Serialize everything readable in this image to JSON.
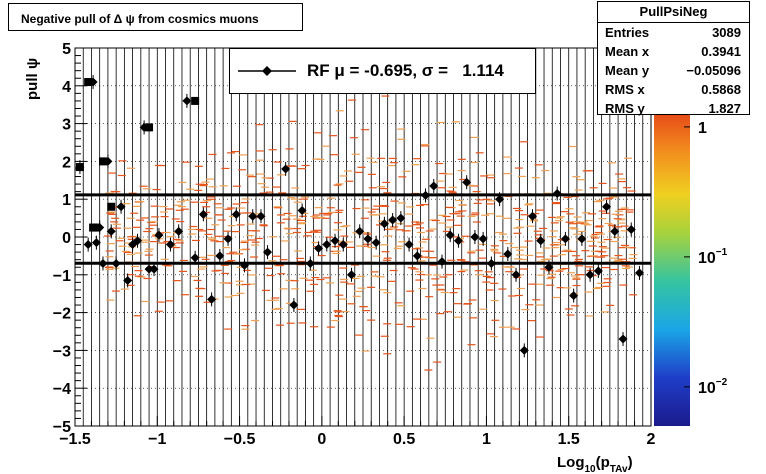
{
  "title": "Negative pull of Δ ψ from cosmics muons",
  "stats": {
    "name": "PullPsiNeg",
    "rows": [
      {
        "label": "Entries",
        "value": "3089"
      },
      {
        "label": "Mean x",
        "value": "0.3941"
      },
      {
        "label": "Mean y",
        "value": "−0.05096"
      },
      {
        "label": "RMS x",
        "value": "0.5868"
      },
      {
        "label": "RMS y",
        "value": "1.827"
      }
    ]
  },
  "legend": {
    "text": "RF μ = -0.695, σ =   1.114"
  },
  "colors": {
    "marker": "#000000",
    "scatter": "#e8541a",
    "scatter_light": "#f0a050"
  },
  "chart_data": {
    "type": "scatter",
    "title": "Negative pull of Δ ψ from cosmics muons",
    "xlabel": "Log",
    "xlabel_sub": "10",
    "xlabel_arg": "(p",
    "xlabel_arg_sub": "TAv",
    "xlabel_close": ")",
    "ylabel": "pull ψ",
    "xlim": [
      -1.5,
      2
    ],
    "ylim": [
      -5,
      5
    ],
    "x_ticks": [
      {
        "v": -1.5,
        "label": "−1.5"
      },
      {
        "v": -1,
        "label": "−1"
      },
      {
        "v": -0.5,
        "label": "−0.5"
      },
      {
        "v": 0,
        "label": "0"
      },
      {
        "v": 0.5,
        "label": "0.5"
      },
      {
        "v": 1,
        "label": "1"
      },
      {
        "v": 1.5,
        "label": "1.5"
      },
      {
        "v": 2,
        "label": "2"
      }
    ],
    "y_ticks": [
      {
        "v": 5,
        "label": "5"
      },
      {
        "v": 4,
        "label": "4"
      },
      {
        "v": 3,
        "label": "3"
      },
      {
        "v": 2,
        "label": "2"
      },
      {
        "v": 1,
        "label": "1"
      },
      {
        "v": 0,
        "label": "0"
      },
      {
        "v": -1,
        "label": "−1"
      },
      {
        "v": -2,
        "label": "−2"
      },
      {
        "v": -3,
        "label": "−3"
      },
      {
        "v": -4,
        "label": "−4"
      },
      {
        "v": -5,
        "label": "−5"
      }
    ],
    "grid": true,
    "reference_lines": [
      1.114,
      -0.695
    ],
    "colorbar": {
      "scale": "log",
      "range": [
        0.005,
        1.5
      ],
      "labels": [
        {
          "v": 1,
          "base": "1",
          "exp": ""
        },
        {
          "v": 0.1,
          "base": "10",
          "exp": "−1"
        },
        {
          "v": 0.01,
          "base": "10",
          "exp": "−2"
        }
      ]
    },
    "profile_markers": {
      "x": [
        -1.47,
        -1.42,
        -1.39,
        -1.37,
        -1.35,
        -1.33,
        -1.3,
        -1.28,
        -1.25,
        -1.22,
        -1.18,
        -1.15,
        -1.12,
        -1.08,
        -1.05,
        -1.02,
        -0.99,
        -0.92,
        -0.87,
        -0.82,
        -0.77,
        -0.72,
        -0.67,
        -0.62,
        -0.57,
        -0.52,
        -0.47,
        -0.42,
        -0.37,
        -0.33,
        -0.22,
        -0.17,
        -0.12,
        -0.07,
        -0.02,
        0.03,
        0.08,
        0.13,
        0.18,
        0.23,
        0.28,
        0.33,
        0.38,
        0.43,
        0.48,
        0.53,
        0.58,
        0.63,
        0.68,
        0.73,
        0.78,
        0.83,
        0.88,
        0.93,
        0.98,
        1.03,
        1.08,
        1.13,
        1.18,
        1.23,
        1.28,
        1.33,
        1.38,
        1.43,
        1.48,
        1.53,
        1.58,
        1.63,
        1.68,
        1.73,
        1.78,
        1.83,
        1.88,
        1.93
      ],
      "y": [
        1.85,
        -0.2,
        4.1,
        -0.15,
        0.25,
        -0.7,
        2.0,
        0.15,
        -0.7,
        0.8,
        -1.15,
        -0.2,
        -0.1,
        2.9,
        -0.85,
        -0.85,
        0.05,
        -0.2,
        0.15,
        3.6,
        -0.55,
        0.6,
        -1.65,
        -0.5,
        -0.05,
        0.6,
        -0.75,
        0.55,
        0.55,
        -0.4,
        1.8,
        -1.8,
        0.7,
        -0.7,
        -0.3,
        -0.2,
        -0.1,
        -0.2,
        -1.0,
        0.15,
        -0.05,
        -0.15,
        0.35,
        0.45,
        0.5,
        -0.2,
        -0.5,
        1.1,
        1.35,
        -0.65,
        0.05,
        -0.1,
        1.45,
        -0.0,
        -0.05,
        -0.7,
        1.0,
        -0.45,
        -1.0,
        -3.0,
        0.55,
        -0.1,
        -0.8,
        1.15,
        -0.05,
        -1.55,
        -0.05,
        -1.0,
        -0.9,
        0.8,
        0.15,
        -2.7,
        0.2,
        -0.95
      ],
      "square_markers_x": [
        -1.47,
        -1.42,
        -1.39,
        -1.37,
        -1.33,
        -1.28,
        -1.05,
        -0.77
      ],
      "square_markers_y": [
        1.85,
        4.1,
        0.25,
        0.25,
        2.0,
        0.8,
        2.9,
        3.6
      ]
    }
  }
}
